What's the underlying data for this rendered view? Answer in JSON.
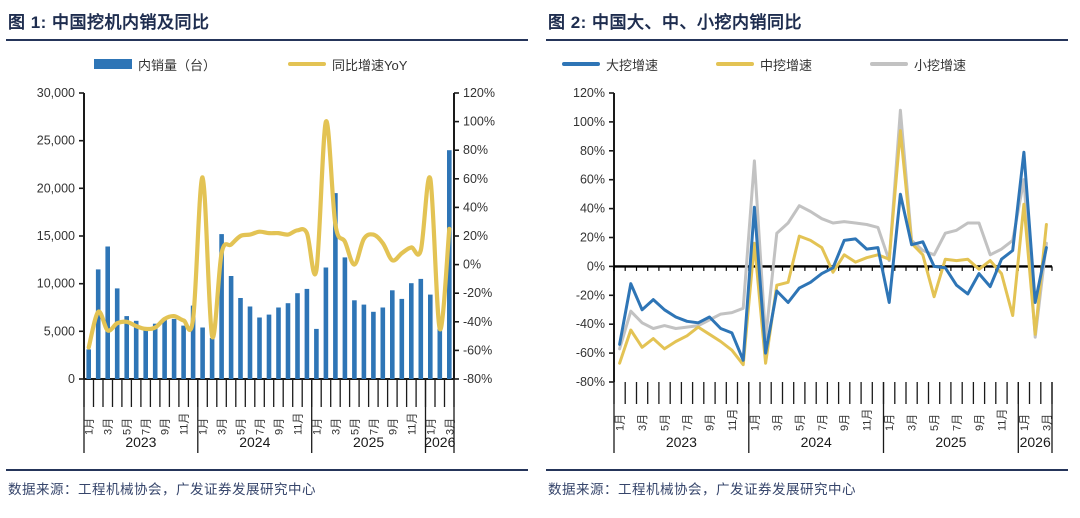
{
  "colors": {
    "bar_blue": "#2E75B6",
    "line_yellow": "#E3C354",
    "line_gray": "#C2C2C2",
    "navy": "#1E2D4F",
    "axis_black": "#000000",
    "tick_text": "#333333"
  },
  "chart_data": [
    {
      "id": "fig1",
      "type": "bar+line",
      "title": "图 1: 中国挖机内销及同比",
      "source": "数据来源：工程机械协会，广发证券发展研究中心",
      "legend": [
        {
          "label": "内销量（台）",
          "swatch": "bar",
          "color": "#2E75B6"
        },
        {
          "label": "同比增速YoY",
          "swatch": "line",
          "color": "#E3C354"
        }
      ],
      "x": {
        "months": [
          "1月",
          "2月",
          "3月",
          "4月",
          "5月",
          "6月",
          "7月",
          "8月",
          "9月",
          "10月",
          "11月",
          "12月",
          "1月",
          "2月",
          "3月",
          "4月",
          "5月",
          "6月",
          "7月",
          "8月",
          "9月",
          "10月",
          "11月",
          "12月",
          "1月",
          "2月",
          "3月",
          "4月",
          "5月",
          "6月",
          "7月",
          "8月",
          "9月",
          "10月",
          "11月",
          "12月",
          "1月",
          "2月",
          "3月"
        ],
        "years": [
          {
            "label": "2023",
            "count": 12
          },
          {
            "label": "2024",
            "count": 12
          },
          {
            "label": "2025",
            "count": 12
          },
          {
            "label": "2026",
            "count": 3
          }
        ]
      },
      "y_left": {
        "min": 0,
        "max": 30000,
        "step": 5000,
        "ticks": [
          "0",
          "5,000",
          "10,000",
          "15,000",
          "20,000",
          "25,000",
          "30,000"
        ]
      },
      "y_right": {
        "min": -80,
        "max": 120,
        "step": 20,
        "ticks": [
          "-80%",
          "-60%",
          "-40%",
          "-20%",
          "0%",
          "20%",
          "40%",
          "60%",
          "80%",
          "100%",
          "120%"
        ]
      },
      "series": [
        {
          "name": "内销量（台）",
          "type": "bar",
          "axis": "left",
          "color": "#2E75B6",
          "values": [
            3100,
            11500,
            13900,
            9500,
            6600,
            6100,
            5100,
            5800,
            6200,
            6300,
            5600,
            7700,
            5400,
            4300,
            15200,
            10800,
            8500,
            7600,
            6450,
            6750,
            7500,
            7950,
            9000,
            9450,
            5250,
            11700,
            19500,
            12750,
            8250,
            7800,
            7050,
            7500,
            9300,
            8400,
            10050,
            10500,
            8850,
            5400,
            24000
          ]
        },
        {
          "name": "同比增速YoY",
          "type": "line",
          "smooth": true,
          "axis": "right",
          "unit": "%",
          "color": "#E3C354",
          "values": [
            -58,
            -33,
            -46,
            -41,
            -40,
            -43,
            -45,
            -44,
            -38,
            -36,
            -39,
            -38,
            61,
            -50,
            8,
            14,
            20,
            21,
            23,
            22,
            22,
            21,
            24,
            22,
            -4,
            100,
            28,
            16,
            0,
            18,
            21,
            15,
            3,
            8,
            12,
            10,
            60,
            -45,
            25
          ]
        }
      ]
    },
    {
      "id": "fig2",
      "type": "line",
      "title": "图 2: 中国大、中、小挖内销同比",
      "source": "数据来源：工程机械协会，广发证券发展研究中心",
      "legend": [
        {
          "label": "大挖增速",
          "swatch": "line",
          "color": "#2E75B6"
        },
        {
          "label": "中挖增速",
          "swatch": "line",
          "color": "#E3C354"
        },
        {
          "label": "小挖增速",
          "swatch": "line",
          "color": "#C2C2C2"
        }
      ],
      "x": {
        "months": [
          "1月",
          "2月",
          "3月",
          "4月",
          "5月",
          "6月",
          "7月",
          "8月",
          "9月",
          "10月",
          "11月",
          "12月",
          "1月",
          "2月",
          "3月",
          "4月",
          "5月",
          "6月",
          "7月",
          "8月",
          "9月",
          "10月",
          "11月",
          "12月",
          "1月",
          "2月",
          "3月",
          "4月",
          "5月",
          "6月",
          "7月",
          "8月",
          "9月",
          "10月",
          "11月",
          "12月",
          "1月",
          "2月",
          "3月"
        ],
        "years": [
          {
            "label": "2023",
            "count": 12
          },
          {
            "label": "2024",
            "count": 12
          },
          {
            "label": "2025",
            "count": 12
          },
          {
            "label": "2026",
            "count": 3
          }
        ]
      },
      "y": {
        "min": -80,
        "max": 120,
        "step": 20,
        "ticks": [
          "-80%",
          "-60%",
          "-40%",
          "-20%",
          "0%",
          "20%",
          "40%",
          "60%",
          "80%",
          "100%",
          "120%"
        ]
      },
      "series": [
        {
          "name": "大挖增速",
          "unit": "%",
          "color": "#2E75B6",
          "values": [
            -54,
            -12,
            -30,
            -23,
            -30,
            -35,
            -38,
            -39,
            -35,
            -43,
            -46,
            -65,
            41,
            -60,
            -17,
            -25,
            -15,
            -11,
            -5,
            -1,
            18,
            19,
            12,
            13,
            -25,
            50,
            15,
            17,
            0,
            -1,
            -13,
            -19,
            -5,
            -14,
            5,
            11,
            79,
            -25,
            13
          ]
        },
        {
          "name": "中挖增速",
          "unit": "%",
          "color": "#E3C354",
          "values": [
            -67,
            -44,
            -56,
            -50,
            -57,
            -52,
            -48,
            -42,
            -47,
            -52,
            -58,
            -68,
            16,
            -67,
            -13,
            -11,
            21,
            18,
            13,
            -4,
            8,
            3,
            6,
            8,
            5,
            94,
            16,
            8,
            -21,
            5,
            4,
            5,
            -2,
            4,
            -5,
            -34,
            43,
            -47,
            29
          ]
        },
        {
          "name": "小挖增速",
          "unit": "%",
          "color": "#C2C2C2",
          "values": [
            -57,
            -31,
            -39,
            -43,
            -41,
            -43,
            -42,
            -41,
            -37,
            -33,
            -32,
            -29,
            73,
            -50,
            23,
            30,
            42,
            38,
            33,
            30,
            31,
            30,
            29,
            27,
            4,
            108,
            18,
            11,
            8,
            23,
            25,
            30,
            30,
            8,
            12,
            18,
            60,
            -49,
            16
          ]
        }
      ]
    }
  ]
}
